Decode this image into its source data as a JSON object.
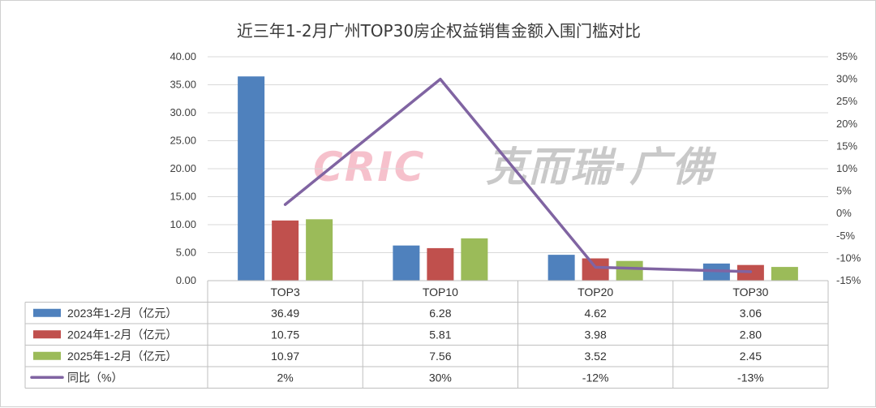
{
  "chart_data": {
    "type": "bar",
    "title": "近三年1-2月广州TOP30房企权益销售金额入围门槛对比",
    "categories": [
      "TOP3",
      "TOP10",
      "TOP20",
      "TOP30"
    ],
    "series": [
      {
        "name": "2023年1-2月（亿元）",
        "type": "bar",
        "axis": "left",
        "color": "#4f81bd",
        "values": [
          36.49,
          6.28,
          4.62,
          3.06
        ],
        "labels": [
          "36.49",
          "6.28",
          "4.62",
          "3.06"
        ]
      },
      {
        "name": "2024年1-2月（亿元）",
        "type": "bar",
        "axis": "left",
        "color": "#c0504d",
        "values": [
          10.75,
          5.81,
          3.98,
          2.8
        ],
        "labels": [
          "10.75",
          "5.81",
          "3.98",
          "2.80"
        ]
      },
      {
        "name": "2025年1-2月（亿元）",
        "type": "bar",
        "axis": "left",
        "color": "#9bbb59",
        "values": [
          10.97,
          7.56,
          3.52,
          2.45
        ],
        "labels": [
          "10.97",
          "7.56",
          "3.52",
          "2.45"
        ]
      },
      {
        "name": "同比（%）",
        "type": "line",
        "axis": "right",
        "color": "#8064a2",
        "values": [
          2,
          30,
          -12,
          -13
        ],
        "labels": [
          "2%",
          "30%",
          "-12%",
          "-13%"
        ]
      }
    ],
    "y_left": {
      "min": 0,
      "max": 40,
      "ticks": [
        "0.00",
        "5.00",
        "10.00",
        "15.00",
        "20.00",
        "25.00",
        "30.00",
        "35.00",
        "40.00"
      ]
    },
    "y_right": {
      "min": -15,
      "max": 35,
      "ticks": [
        "-15%",
        "-10%",
        "-5%",
        "0%",
        "5%",
        "10%",
        "15%",
        "20%",
        "25%",
        "30%",
        "35%"
      ]
    },
    "grid": true,
    "legend": "data-table",
    "watermark": {
      "latin": "CRIC",
      "cjk": "克而瑞·广佛"
    }
  }
}
